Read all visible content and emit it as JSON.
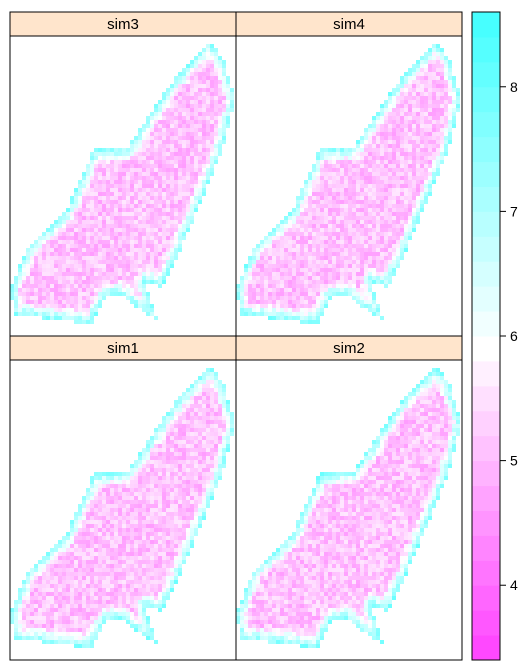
{
  "chart_data": {
    "type": "heatmap",
    "layout": "2x2 trellis",
    "panels": [
      {
        "name": "sim3",
        "row": 0,
        "col": 0,
        "seed": 3
      },
      {
        "name": "sim4",
        "row": 0,
        "col": 1,
        "seed": 4
      },
      {
        "name": "sim1",
        "row": 1,
        "col": 0,
        "seed": 1
      },
      {
        "name": "sim2",
        "row": 1,
        "col": 1,
        "seed": 2
      }
    ],
    "colorbar": {
      "range": [
        3.4,
        8.6
      ],
      "ticks": [
        4,
        5,
        6,
        7,
        8
      ],
      "low_color": "#ff40ff",
      "mid_color": "#ffffff",
      "high_color": "#40ffff",
      "mid_value": 5.9
    },
    "strip_color": "#ffe5cc",
    "title": "",
    "xlabel": "",
    "ylabel": ""
  }
}
